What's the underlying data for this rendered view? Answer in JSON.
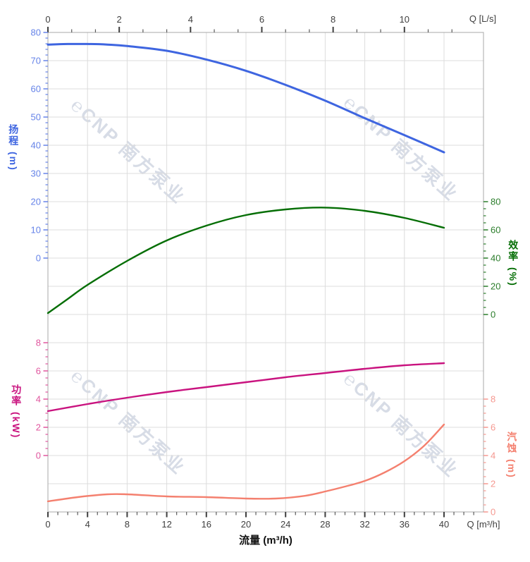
{
  "watermark": {
    "text": "℮CNP 南方泵业"
  },
  "chart_data": {
    "type": "line",
    "title": "",
    "grid": true,
    "legend": "none",
    "x_axis_bottom": {
      "label": "流量 (m³/h)",
      "unit_label": "Q [m³/h]",
      "min": 0,
      "max": 44,
      "major_ticks": [
        0,
        4,
        8,
        12,
        16,
        20,
        24,
        28,
        32,
        36,
        40
      ],
      "minor_step": 1
    },
    "x_axis_top": {
      "unit_label": "Q [L/s]",
      "min": 0,
      "max": 12.2,
      "major_ticks": [
        0,
        2,
        4,
        6,
        8,
        10
      ],
      "minor_per_major": 3
    },
    "axes": {
      "head": {
        "title": "扬程",
        "unit": "(m)",
        "side": "left",
        "min": 0,
        "max": 80,
        "major_ticks": [
          0,
          10,
          20,
          30,
          40,
          50,
          60,
          70,
          80
        ],
        "minor_step": 2,
        "color": "#3E65E0",
        "tick_color": "#6583E8"
      },
      "efficiency": {
        "title": "效率",
        "unit": "(%)",
        "side": "right",
        "min": 0,
        "max": 80,
        "major_ticks": [
          0,
          20,
          40,
          60,
          80
        ],
        "minor_step": 5,
        "color": "#056E05",
        "tick_color": "#2B7D2B"
      },
      "power": {
        "title": "功率",
        "unit": "(kW)",
        "side": "left",
        "min": 0,
        "max": 8,
        "major_ticks": [
          0,
          2,
          4,
          6,
          8
        ],
        "minor_step": 0.5,
        "color": "#C9137F",
        "tick_color": "#E0559E"
      },
      "npsh": {
        "title": "汽蚀",
        "unit": "(m)",
        "side": "right",
        "min": 0,
        "max": 8,
        "major_ticks": [
          0,
          2,
          4,
          6,
          8
        ],
        "minor_step": 0.5,
        "color": "#F4806F",
        "tick_color": "#F59890"
      }
    },
    "series": [
      {
        "name": "扬程",
        "axis": "head",
        "color": "#3E65E0",
        "width": 3,
        "points": [
          [
            0,
            75.7
          ],
          [
            2,
            75.9
          ],
          [
            4,
            75.9
          ],
          [
            6,
            75.7
          ],
          [
            8,
            75.2
          ],
          [
            12,
            73.5
          ],
          [
            16,
            70.4
          ],
          [
            20,
            66.4
          ],
          [
            24,
            61.4
          ],
          [
            28,
            55.8
          ],
          [
            32,
            49.6
          ],
          [
            36,
            43.6
          ],
          [
            40,
            37.5
          ]
        ]
      },
      {
        "name": "效率",
        "axis": "efficiency",
        "color": "#056E05",
        "width": 2.4,
        "points": [
          [
            0,
            1
          ],
          [
            2,
            11
          ],
          [
            4,
            21
          ],
          [
            8,
            38
          ],
          [
            12,
            52.5
          ],
          [
            16,
            63
          ],
          [
            20,
            70.5
          ],
          [
            24,
            74.5
          ],
          [
            28,
            75.8
          ],
          [
            32,
            73.5
          ],
          [
            36,
            68.5
          ],
          [
            40,
            61.5
          ]
        ]
      },
      {
        "name": "功率",
        "axis": "power",
        "color": "#C9137F",
        "width": 2.4,
        "points": [
          [
            0,
            3.15
          ],
          [
            4,
            3.65
          ],
          [
            8,
            4.1
          ],
          [
            12,
            4.5
          ],
          [
            16,
            4.85
          ],
          [
            20,
            5.2
          ],
          [
            24,
            5.55
          ],
          [
            28,
            5.85
          ],
          [
            32,
            6.15
          ],
          [
            36,
            6.4
          ],
          [
            40,
            6.55
          ]
        ]
      },
      {
        "name": "汽蚀",
        "axis": "npsh",
        "color": "#F4806F",
        "width": 2.4,
        "points": [
          [
            0,
            0.75
          ],
          [
            3,
            1.05
          ],
          [
            6,
            1.25
          ],
          [
            8,
            1.25
          ],
          [
            12,
            1.1
          ],
          [
            16,
            1.05
          ],
          [
            20,
            0.95
          ],
          [
            23,
            0.95
          ],
          [
            26,
            1.15
          ],
          [
            28,
            1.45
          ],
          [
            30,
            1.8
          ],
          [
            32,
            2.2
          ],
          [
            34,
            2.8
          ],
          [
            36,
            3.6
          ],
          [
            38,
            4.7
          ],
          [
            40,
            6.2
          ]
        ]
      }
    ]
  }
}
